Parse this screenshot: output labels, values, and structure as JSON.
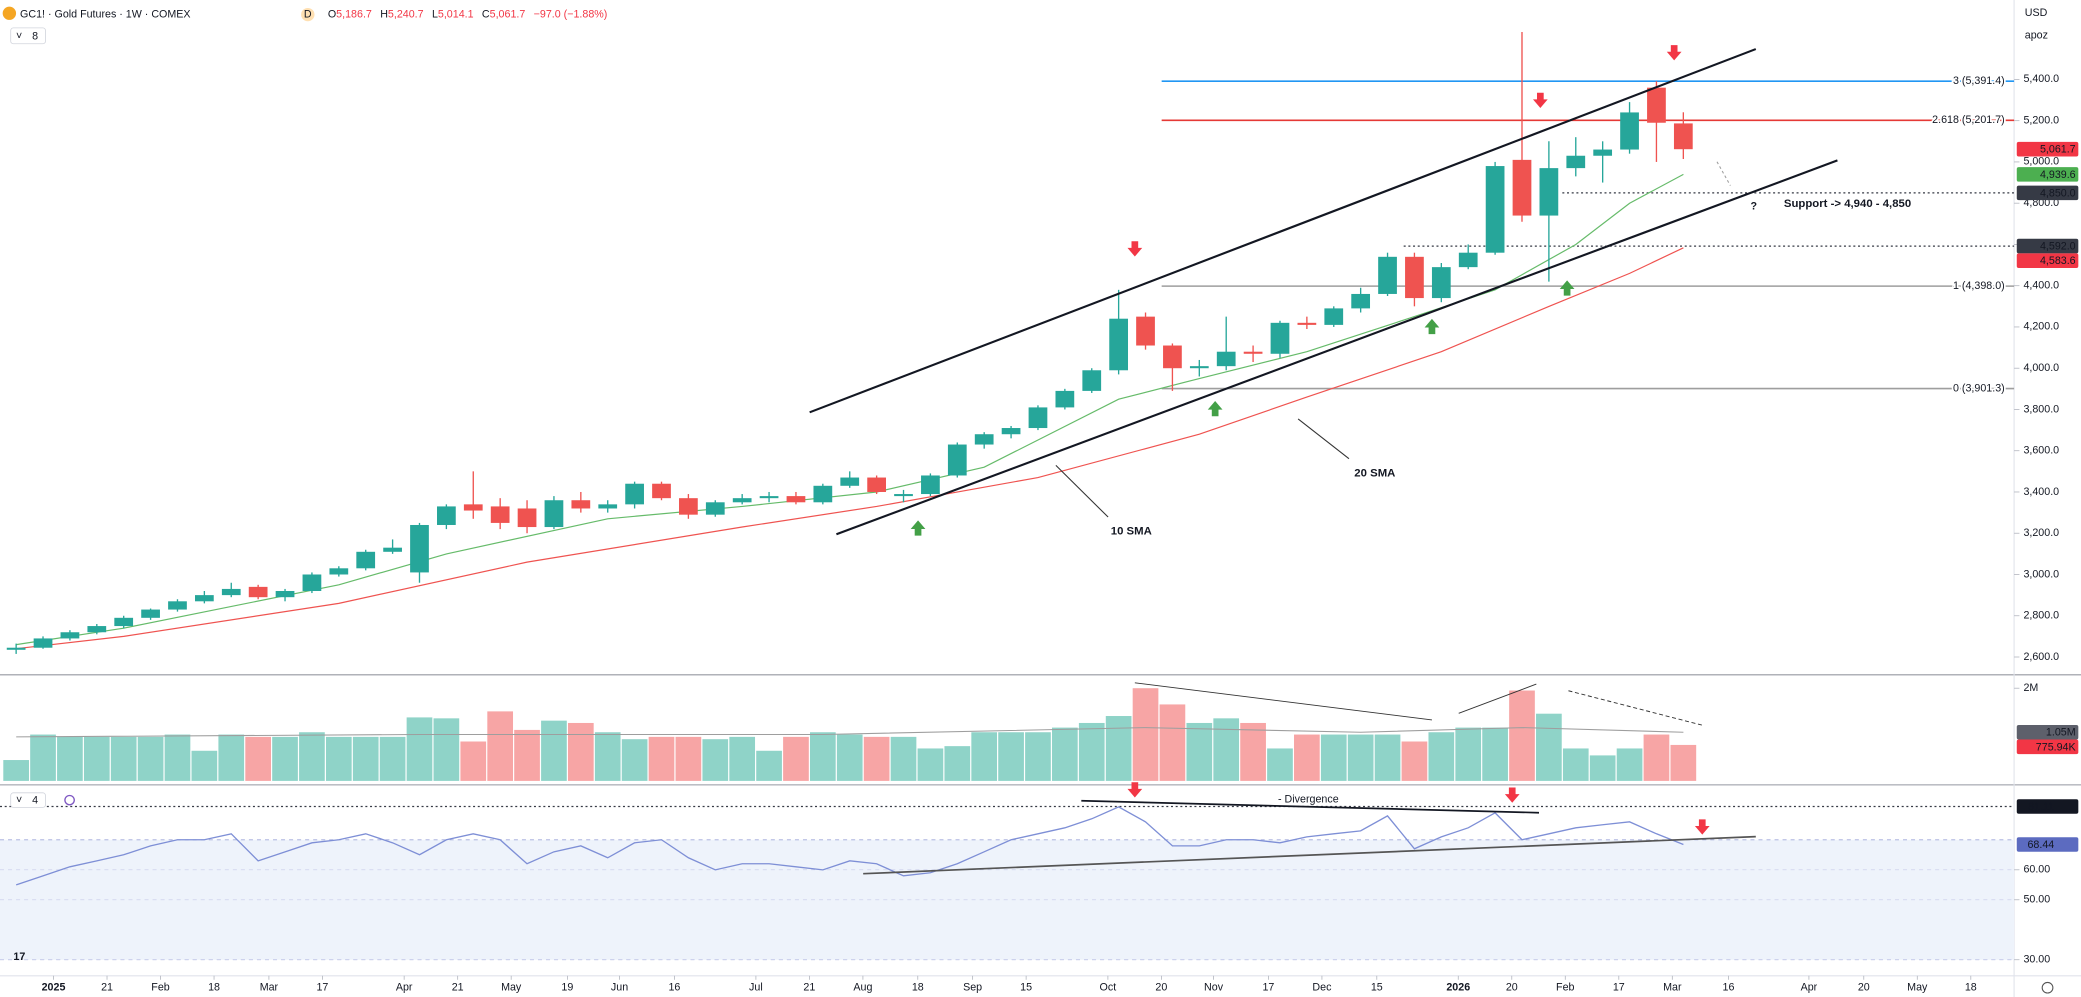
{
  "header": {
    "symbol": "GC1! · Gold Futures · 1W · COMEX",
    "badge": "D",
    "ohlc": [
      {
        "key": "O",
        "value": "5,186.7"
      },
      {
        "key": "H",
        "value": "5,240.7"
      },
      {
        "key": "L",
        "value": "5,014.1"
      },
      {
        "key": "C",
        "value": "5,061.7"
      }
    ],
    "change": "−97.0 (−1.88%)",
    "indicators": "8",
    "rsi_panel": "4",
    "currency": "USD",
    "account": "apoz"
  },
  "annotations": {
    "sma10": "10 SMA",
    "sma20": "20 SMA",
    "support": "Support -> 4,940 - 4,850",
    "question": "?",
    "divergence": "- Divergence"
  },
  "chart_data": [
    {
      "type": "candlestick",
      "up_color": "#26a69a",
      "down_color": "#ef5350",
      "open": [
        2635,
        2645,
        2690,
        2720,
        2750,
        2790,
        2830,
        2870,
        2900,
        2940,
        2890,
        2920,
        3000,
        3030,
        3110,
        3010,
        3240,
        3340,
        3330,
        3320,
        3230,
        3360,
        3320,
        3340,
        3440,
        3370,
        3290,
        3350,
        3370,
        3380,
        3350,
        3430,
        3470,
        3380,
        3390,
        3480,
        3630,
        3680,
        3710,
        3810,
        3890,
        3990,
        4250,
        4110,
        4000,
        4010,
        4080,
        4070,
        4220,
        4210,
        4290,
        4360,
        4540,
        4340,
        4490,
        4560,
        5010,
        4740,
        4970,
        5030,
        5060,
        5360,
        5186.7
      ],
      "high": [
        2665,
        2700,
        2730,
        2760,
        2800,
        2835,
        2880,
        2920,
        2960,
        2950,
        2930,
        3010,
        3040,
        3120,
        3170,
        3250,
        3340,
        3500,
        3370,
        3360,
        3380,
        3400,
        3360,
        3450,
        3450,
        3390,
        3360,
        3390,
        3400,
        3400,
        3440,
        3500,
        3480,
        3410,
        3490,
        3640,
        3690,
        3720,
        3820,
        3900,
        4000,
        4380,
        4270,
        4120,
        4040,
        4250,
        4110,
        4230,
        4250,
        4300,
        4390,
        4560,
        4560,
        4510,
        4600,
        5000,
        5630,
        5100,
        5120,
        5100,
        5290,
        5391,
        5240.7
      ],
      "low": [
        2615,
        2640,
        2680,
        2710,
        2740,
        2780,
        2820,
        2860,
        2890,
        2880,
        2870,
        2910,
        2990,
        3020,
        3100,
        2960,
        3220,
        3270,
        3220,
        3200,
        3220,
        3300,
        3300,
        3320,
        3360,
        3270,
        3280,
        3340,
        3350,
        3340,
        3340,
        3420,
        3390,
        3350,
        3380,
        3470,
        3610,
        3660,
        3700,
        3800,
        3880,
        3970,
        4090,
        3890,
        3960,
        3990,
        4030,
        4050,
        4190,
        4200,
        4270,
        4350,
        4300,
        4320,
        4480,
        4550,
        4710,
        4420,
        4930,
        4900,
        5040,
        5000,
        5014.1
      ],
      "close": [
        2645,
        2690,
        2720,
        2750,
        2790,
        2830,
        2870,
        2900,
        2930,
        2890,
        2920,
        3000,
        3030,
        3110,
        3130,
        3240,
        3330,
        3310,
        3250,
        3230,
        3360,
        3320,
        3340,
        3440,
        3370,
        3290,
        3350,
        3370,
        3380,
        3350,
        3430,
        3470,
        3400,
        3390,
        3480,
        3630,
        3680,
        3710,
        3810,
        3890,
        3990,
        4240,
        4110,
        4000,
        4010,
        4080,
        4070,
        4220,
        4210,
        4290,
        4360,
        4540,
        4340,
        4490,
        4560,
        4980,
        4740,
        4970,
        5030,
        5060,
        5240,
        5190,
        5061.7
      ],
      "series": [
        {
          "name": "10 SMA",
          "color": "#66bb6a",
          "x": [
            0,
            4,
            12,
            16,
            22,
            27,
            32,
            36,
            41,
            44,
            48,
            52,
            55,
            58,
            60,
            62
          ],
          "values": [
            2660,
            2740,
            2950,
            3100,
            3270,
            3330,
            3400,
            3520,
            3850,
            3950,
            4080,
            4250,
            4380,
            4600,
            4800,
            4939.6
          ]
        },
        {
          "name": "20 SMA",
          "color": "#ef5350",
          "x": [
            0,
            4,
            12,
            19,
            27,
            32,
            38,
            44,
            48,
            53,
            57,
            60,
            62
          ],
          "values": [
            2640,
            2700,
            2860,
            3060,
            3230,
            3330,
            3470,
            3680,
            3860,
            4080,
            4300,
            4460,
            4583.6
          ]
        }
      ],
      "levels": [
        {
          "value": 5391.4,
          "label": "3 (5,391.4)",
          "color": "#2196f3"
        },
        {
          "value": 5201.7,
          "label": "2.618 (5,201.7)",
          "color": "#e53935"
        },
        {
          "value": 4398,
          "label": "1 (4,398.0)",
          "color": "#9e9e9e"
        },
        {
          "value": 3901.3,
          "label": "0 (3,901.3)",
          "color": "#9e9e9e"
        }
      ],
      "dotted_levels": [
        4850,
        4592
      ],
      "badges": [
        {
          "value": 5061.7,
          "label": "5,061.7",
          "color": "#f23645"
        },
        {
          "value": 4939.6,
          "label": "4,939.6",
          "color": "#4caf50"
        },
        {
          "value": 4850,
          "label": "4,850.0",
          "color": "#363a45"
        },
        {
          "value": 4592,
          "label": "4,592.0",
          "color": "#363a45"
        },
        {
          "value": 4583.6,
          "label": "4,583.6",
          "color": "#f23645"
        }
      ],
      "ylim": [
        2520,
        5785
      ],
      "yticks": [
        {
          "value": 2600,
          "label": "2,600.0"
        },
        {
          "value": 2800,
          "label": "2,800.0"
        },
        {
          "value": 3000,
          "label": "3,000.0"
        },
        {
          "value": 3200,
          "label": "3,200.0"
        },
        {
          "value": 3400,
          "label": "3,400.0"
        },
        {
          "value": 3600,
          "label": "3,600.0"
        },
        {
          "value": 3800,
          "label": "3,800.0"
        },
        {
          "value": 4000,
          "label": "4,000.0"
        },
        {
          "value": 4200,
          "label": "4,200.0"
        },
        {
          "value": 4400,
          "label": "4,400.0"
        },
        {
          "value": 4600,
          "label": "4,600.0"
        },
        {
          "value": 4800,
          "label": "4,800.0"
        },
        {
          "value": 5000,
          "label": "5,000.0"
        },
        {
          "value": 5200,
          "label": "5,200.0"
        },
        {
          "value": 5400,
          "label": "5,400.0"
        }
      ],
      "xlim": [
        -0.6,
        74.3
      ],
      "xticks": [
        {
          "value": 1.39,
          "label": "2025"
        },
        {
          "value": 3.38,
          "label": "21"
        },
        {
          "value": 5.37,
          "label": "Feb"
        },
        {
          "value": 7.36,
          "label": "18"
        },
        {
          "value": 9.4,
          "label": "Mar"
        },
        {
          "value": 11.39,
          "label": "17"
        },
        {
          "value": 14.43,
          "label": "Apr"
        },
        {
          "value": 16.42,
          "label": "21"
        },
        {
          "value": 18.41,
          "label": "May"
        },
        {
          "value": 20.5,
          "label": "19"
        },
        {
          "value": 22.44,
          "label": "Jun"
        },
        {
          "value": 24.48,
          "label": "16"
        },
        {
          "value": 27.51,
          "label": "Jul"
        },
        {
          "value": 29.5,
          "label": "21"
        },
        {
          "value": 31.49,
          "label": "Aug"
        },
        {
          "value": 33.53,
          "label": "18"
        },
        {
          "value": 35.57,
          "label": "Sep"
        },
        {
          "value": 37.56,
          "label": "15"
        },
        {
          "value": 40.6,
          "label": "Oct"
        },
        {
          "value": 42.59,
          "label": "20"
        },
        {
          "value": 44.53,
          "label": "Nov"
        },
        {
          "value": 46.57,
          "label": "17"
        },
        {
          "value": 48.56,
          "label": "Dec"
        },
        {
          "value": 50.6,
          "label": "15"
        },
        {
          "value": 53.63,
          "label": "2026"
        },
        {
          "value": 55.62,
          "label": "20"
        },
        {
          "value": 57.61,
          "label": "Feb"
        },
        {
          "value": 59.6,
          "label": "17"
        },
        {
          "value": 61.59,
          "label": "Mar"
        },
        {
          "value": 63.68,
          "label": "16"
        },
        {
          "value": 66.67,
          "label": "Apr"
        },
        {
          "value": 68.71,
          "label": "20"
        },
        {
          "value": 70.7,
          "label": "May"
        },
        {
          "value": 72.69,
          "label": "18"
        }
      ],
      "grid": false
    },
    {
      "type": "bar",
      "up_color": "#8fd3c8",
      "down_color": "#f7a5a5",
      "values": [
        450000,
        1000000,
        950000,
        950000,
        950000,
        950000,
        1000000,
        650000,
        1000000,
        950000,
        950000,
        1050000,
        950000,
        950000,
        950000,
        1370000,
        1350000,
        850000,
        1500000,
        1100000,
        1300000,
        1250000,
        1050000,
        900000,
        950000,
        950000,
        900000,
        950000,
        650000,
        950000,
        1050000,
        1000000,
        950000,
        950000,
        700000,
        750000,
        1050000,
        1050000,
        1050000,
        1150000,
        1250000,
        1400000,
        2000000,
        1650000,
        1250000,
        1350000,
        1250000,
        700000,
        1000000,
        1000000,
        1000000,
        1000000,
        850000,
        1050000,
        1150000,
        1150000,
        1950000,
        1450000,
        700000,
        550000,
        700000,
        1000000,
        775940
      ],
      "series": [
        {
          "color": "#9e9e9e",
          "x": [
            0,
            15,
            30,
            42,
            50,
            56,
            62
          ],
          "values": [
            950000,
            1000000,
            1000000,
            1150000,
            1050000,
            1150000,
            1050000
          ]
        }
      ],
      "badges": [
        {
          "value": 1050000,
          "label": "1.05M",
          "color": "#5d606b"
        },
        {
          "value": 775940,
          "label": "775.94K",
          "color": "#f23645"
        }
      ],
      "ylim": [
        0,
        2260000
      ],
      "yticks": [
        {
          "value": 2000000,
          "label": "2M"
        }
      ]
    },
    {
      "type": "line",
      "color": "#7e8fd6",
      "values": [
        55,
        58,
        61,
        63,
        65,
        68,
        70,
        70,
        72,
        63,
        66,
        69,
        70,
        72,
        69,
        65,
        70,
        72,
        70,
        62,
        66,
        68,
        64,
        69,
        70,
        64,
        60,
        62,
        62,
        61,
        60,
        63,
        62,
        58,
        59,
        62,
        66,
        70,
        72,
        74,
        77,
        81,
        76,
        68,
        68,
        70,
        70,
        69,
        71,
        72,
        73,
        78,
        67,
        71,
        74,
        79,
        70,
        72,
        74,
        75,
        76,
        72,
        68.44
      ],
      "band": [
        30,
        70
      ],
      "band_color": "#eef3fb",
      "levels": [
        81.11
      ],
      "ylim": [
        24.2,
        87
      ],
      "yticks": [
        {
          "value": 60,
          "label": "60.00"
        },
        {
          "value": 50,
          "label": "50.00"
        },
        {
          "value": 30,
          "label": "30.00"
        }
      ]
    }
  ]
}
